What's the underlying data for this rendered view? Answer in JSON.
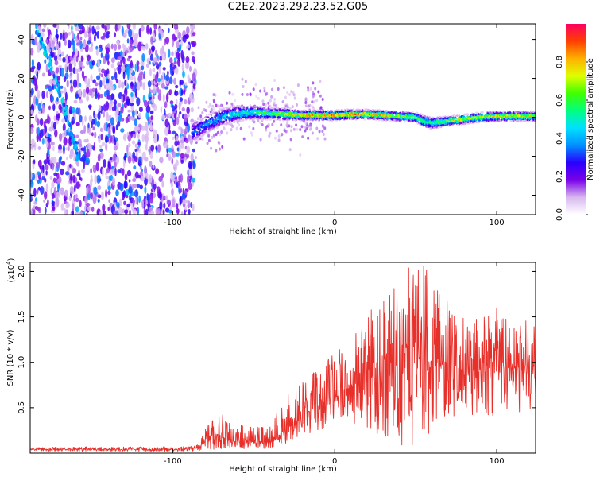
{
  "figure": {
    "title": "C2E2.2023.292.23.52.G05"
  },
  "colorbar": {
    "label": "Normalized spectral amplitude",
    "ticks": [
      "0.0",
      "0.2",
      "0.4",
      "0.6",
      "0.8"
    ],
    "tick_values": [
      0.0,
      0.2,
      0.4,
      0.6,
      0.8
    ],
    "range": [
      0,
      1
    ],
    "colormap": [
      "#ffffff",
      "#d8b8f0",
      "#7a00e8",
      "#2a00ff",
      "#0090ff",
      "#00e0ff",
      "#00ff80",
      "#40ff00",
      "#e0ff00",
      "#ffb000",
      "#ff4000",
      "#ff0060"
    ]
  },
  "colors": {
    "snr_line": "#e8302b",
    "axis": "#000000",
    "background": "#ffffff"
  },
  "chart_data": [
    {
      "type": "heatmap",
      "title": "",
      "xlabel": "Height of straight line (km)",
      "ylabel": "Frequency (Hz)",
      "xlim": [
        -188,
        124
      ],
      "ylim": [
        -50,
        48
      ],
      "xticks": [
        -100,
        0,
        100
      ],
      "xtick_labels": [
        "-100",
        "0",
        "100"
      ],
      "yticks": [
        -40,
        -20,
        0,
        20,
        40
      ],
      "ytick_labels": [
        "-40",
        "-20",
        "0",
        "20",
        "40"
      ],
      "noise_region_x": [
        -188,
        -86
      ],
      "signal_ridge": {
        "x": [
          -88,
          -80,
          -70,
          -60,
          -50,
          -40,
          -30,
          -20,
          -10,
          0,
          10,
          20,
          30,
          40,
          50,
          55,
          60,
          70,
          80,
          90,
          100,
          110,
          124
        ],
        "y": [
          -8,
          -4,
          0,
          2,
          2.5,
          2,
          1.5,
          1,
          1,
          1,
          1.5,
          1.5,
          1,
          0.5,
          0,
          -2,
          -3,
          -2,
          -1,
          0,
          0.5,
          0.5,
          0.5
        ],
        "width_hz": [
          10,
          9,
          8,
          7,
          6,
          5,
          5,
          4,
          4,
          4,
          4,
          4,
          4,
          4,
          4,
          5,
          5,
          4,
          4,
          4,
          4,
          4,
          4
        ],
        "peak_amplitude": [
          0.35,
          0.4,
          0.45,
          0.55,
          0.6,
          0.7,
          0.8,
          0.85,
          0.9,
          0.95,
          0.95,
          0.9,
          0.85,
          0.8,
          0.75,
          0.6,
          0.6,
          0.75,
          0.8,
          0.8,
          0.8,
          0.8,
          0.8
        ]
      },
      "streak_features": [
        {
          "x": [
            -184,
            -178,
            -172,
            -167,
            -162,
            -158
          ],
          "y": [
            45,
            32,
            18,
            5,
            -10,
            -22
          ]
        }
      ]
    },
    {
      "type": "line",
      "title": "",
      "xlabel": "Height of straight line (km)",
      "ylabel": "SNR (10 * v/v)",
      "y_multiplier_label": "(x10",
      "y_multiplier_exp": "4",
      "y_multiplier_close": ")",
      "xlim": [
        -188,
        124
      ],
      "ylim": [
        0,
        2.1
      ],
      "xticks": [
        -100,
        0,
        100
      ],
      "xtick_labels": [
        "-100",
        "0",
        "100"
      ],
      "yticks": [
        0.5,
        1.0,
        1.5,
        2.0
      ],
      "ytick_labels": [
        "0.5",
        "1.0",
        "1.5",
        "2.0"
      ],
      "series": [
        {
          "color": "#e8302b",
          "envelope_x": [
            -188,
            -100,
            -90,
            -85,
            -80,
            -75,
            -70,
            -65,
            -60,
            -55,
            -50,
            -45,
            -40,
            -35,
            -30,
            -25,
            -20,
            -15,
            -10,
            -5,
            0,
            5,
            10,
            15,
            20,
            25,
            30,
            35,
            40,
            45,
            50,
            55,
            60,
            65,
            70,
            75,
            80,
            85,
            90,
            95,
            100,
            105,
            110,
            115,
            120,
            124
          ],
          "envelope_mean": [
            0.04,
            0.04,
            0.05,
            0.06,
            0.12,
            0.18,
            0.2,
            0.16,
            0.13,
            0.12,
            0.13,
            0.12,
            0.12,
            0.15,
            0.28,
            0.35,
            0.4,
            0.45,
            0.5,
            0.55,
            0.6,
            0.68,
            0.75,
            0.8,
            0.85,
            0.9,
            0.95,
            1.0,
            1.05,
            1.05,
            1.05,
            1.0,
            1.0,
            1.0,
            0.95,
            0.95,
            0.9,
            0.9,
            0.92,
            0.95,
            0.95,
            0.95,
            0.95,
            0.95,
            0.95,
            0.95
          ],
          "envelope_max": [
            0.07,
            0.07,
            0.08,
            0.1,
            0.28,
            0.45,
            0.48,
            0.38,
            0.32,
            0.3,
            0.3,
            0.3,
            0.3,
            0.5,
            0.65,
            0.7,
            0.8,
            0.85,
            0.95,
            1.0,
            1.15,
            1.25,
            1.3,
            1.45,
            1.5,
            1.7,
            1.85,
            1.95,
            2.05,
            2.1,
            2.05,
            2.1,
            1.9,
            1.75,
            1.7,
            1.6,
            1.55,
            1.5,
            1.55,
            1.6,
            1.6,
            1.5,
            1.4,
            1.45,
            1.5,
            1.45
          ],
          "envelope_min": [
            0.02,
            0.02,
            0.02,
            0.02,
            0.03,
            0.03,
            0.04,
            0.04,
            0.04,
            0.04,
            0.04,
            0.04,
            0.05,
            0.08,
            0.1,
            0.12,
            0.15,
            0.2,
            0.25,
            0.3,
            0.35,
            0.4,
            0.35,
            0.3,
            0.25,
            0.2,
            0.15,
            0.1,
            0.1,
            0.05,
            0.1,
            0.15,
            0.2,
            0.3,
            0.35,
            0.4,
            0.4,
            0.4,
            0.4,
            0.4,
            0.4,
            0.4,
            0.4,
            0.45,
            0.45,
            0.4
          ]
        }
      ]
    }
  ]
}
